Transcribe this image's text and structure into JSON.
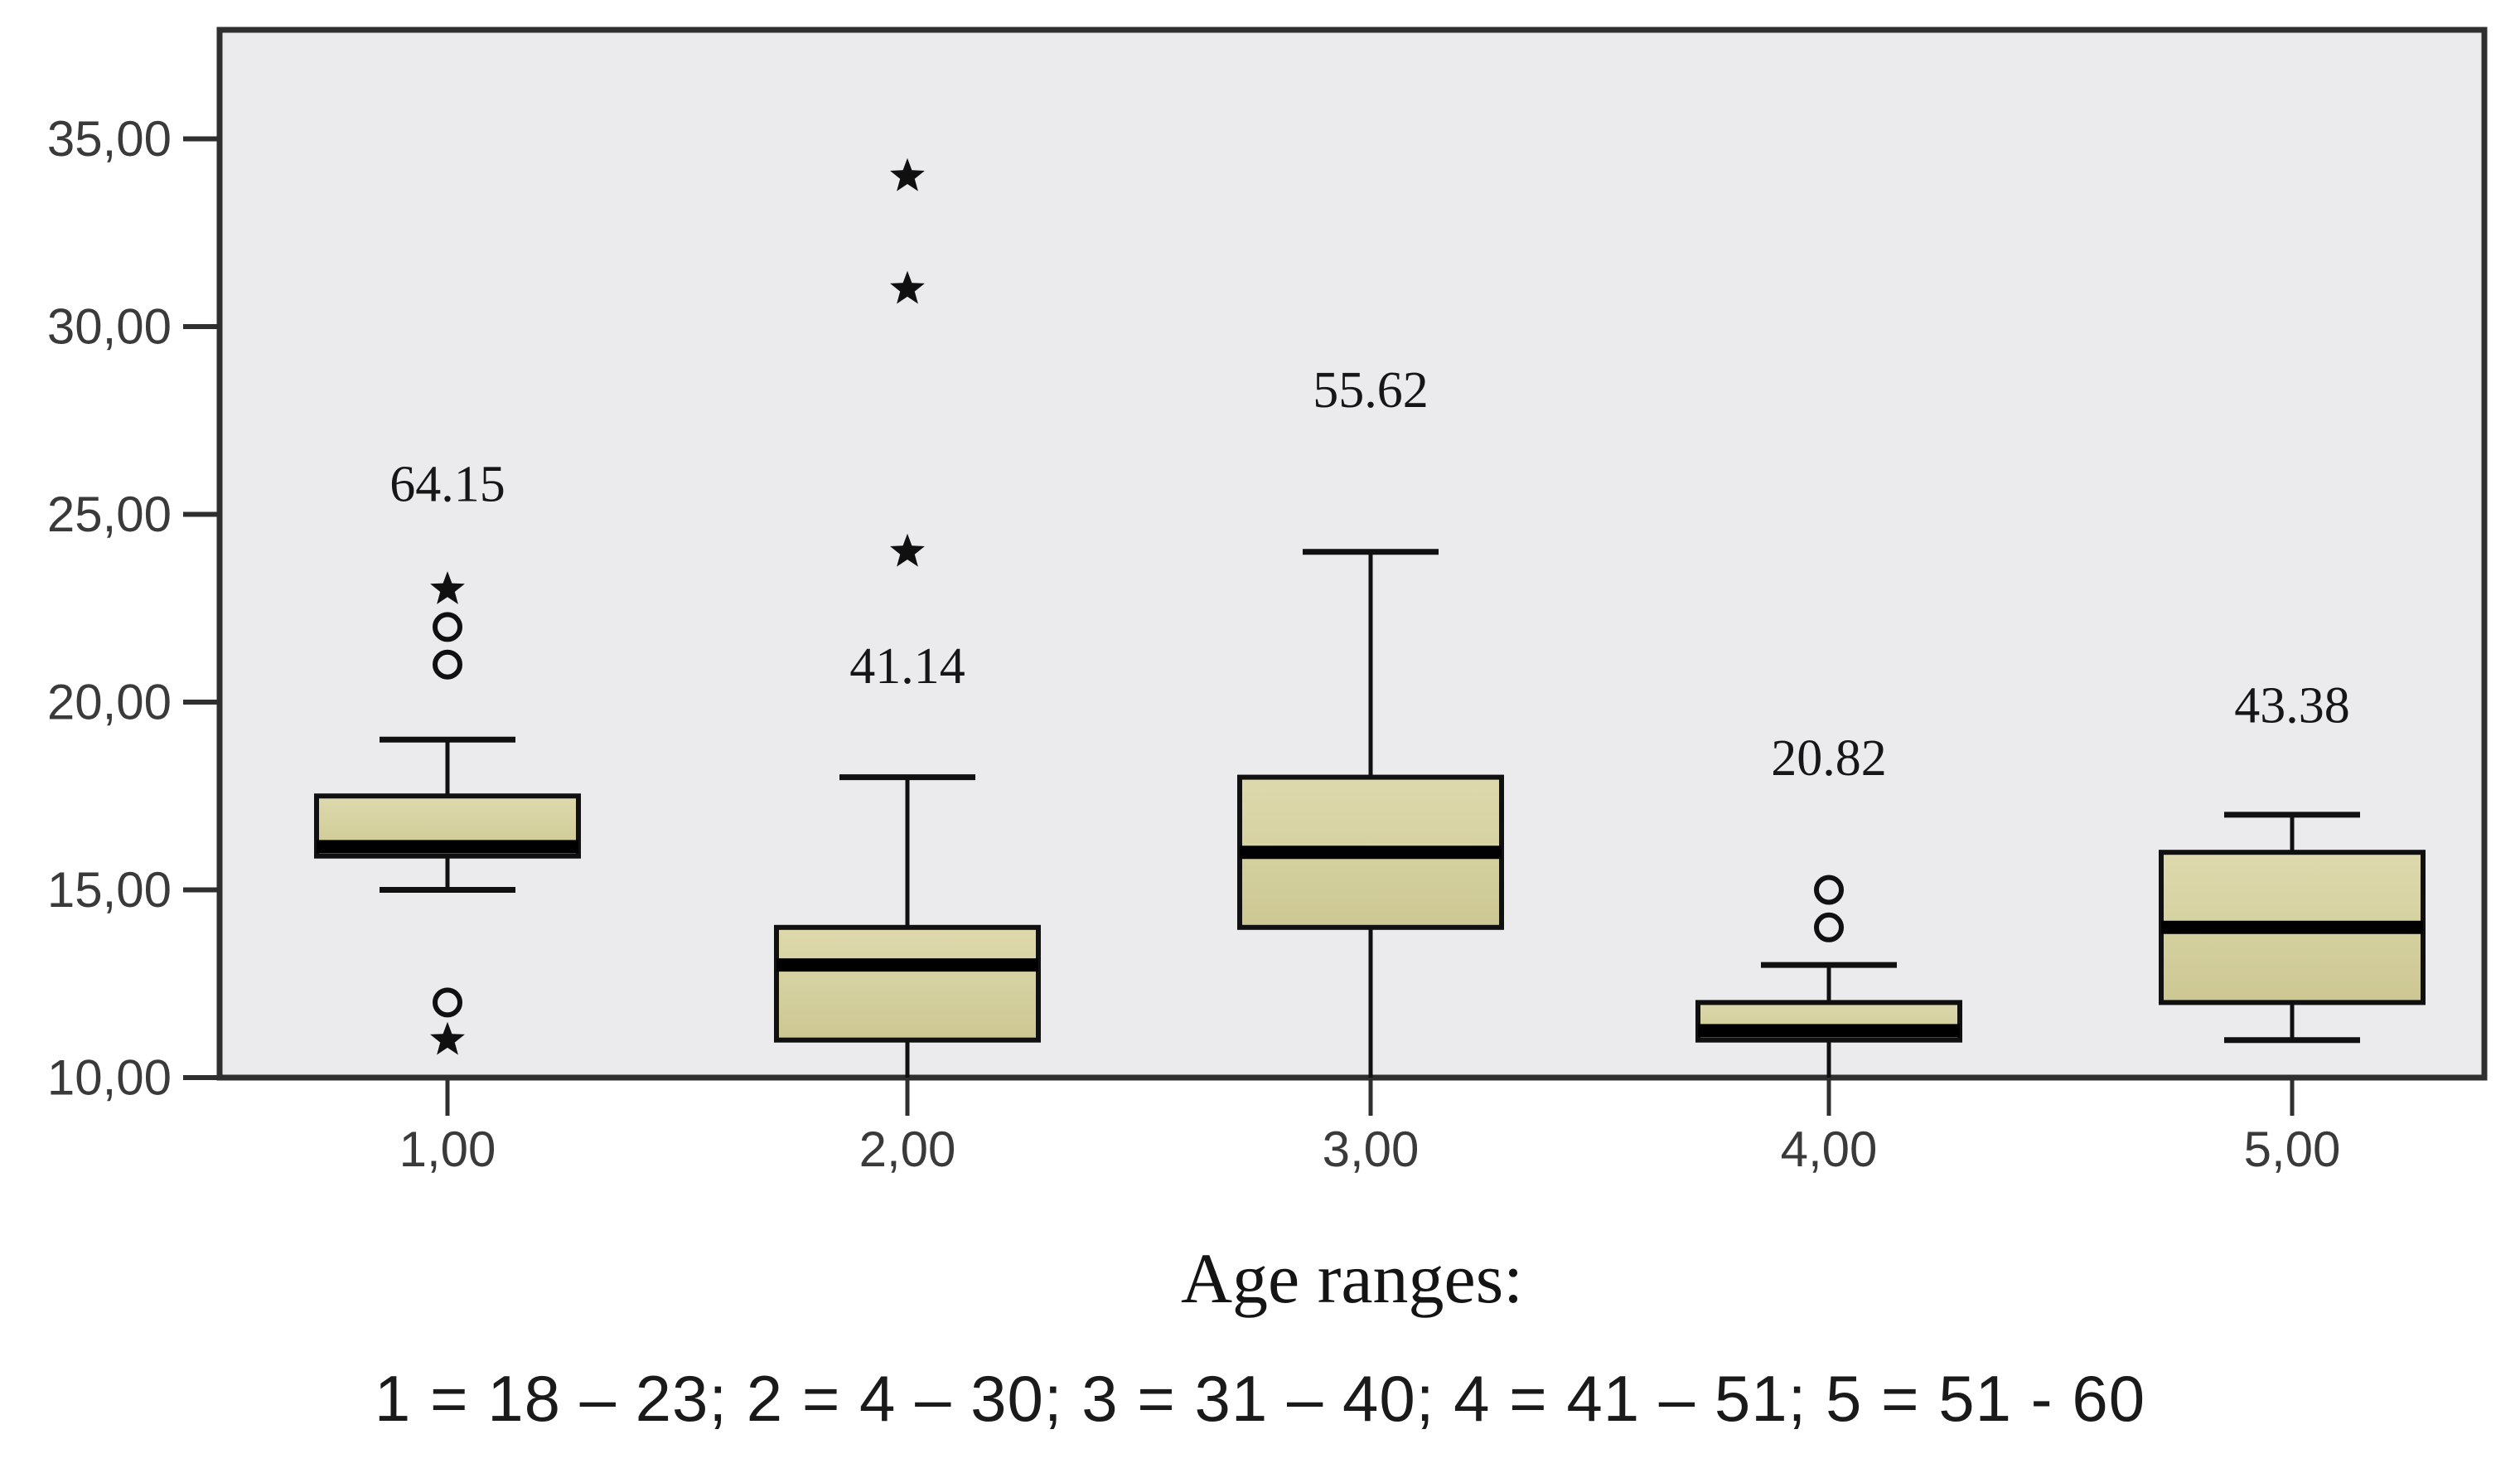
{
  "chart_data": {
    "type": "box",
    "title": "",
    "xlabel": "Age ranges:",
    "ylabel": "",
    "ylim": [
      10,
      37.9
    ],
    "grid": false,
    "y_axis": {
      "ticks": [
        {
          "value": 35,
          "label": "35,00"
        },
        {
          "value": 30,
          "label": "30,00"
        },
        {
          "value": 25,
          "label": "25,00"
        },
        {
          "value": 20,
          "label": "20,00"
        },
        {
          "value": 15,
          "label": "15,00"
        },
        {
          "value": 10,
          "label": "10,00"
        }
      ]
    },
    "x_axis": {
      "title": "Age ranges:",
      "categories": [
        "1,00",
        "2,00",
        "3,00",
        "4,00",
        "5,00"
      ]
    },
    "series": [
      {
        "category": "1,00",
        "whisker_low": 15,
        "low_cap": true,
        "q1": 15.9,
        "median": 16.15,
        "q3": 17.5,
        "whisker_high": 19,
        "high_cap": true,
        "outliers": [
          {
            "type": "star",
            "value": 23
          },
          {
            "type": "circle",
            "value": 22
          },
          {
            "type": "circle",
            "value": 21
          },
          {
            "type": "circle",
            "value": 12
          },
          {
            "type": "star",
            "value": 11
          }
        ],
        "annotation": {
          "text": "64.15",
          "value": 25.8
        }
      },
      {
        "category": "2,00",
        "whisker_low": 10,
        "low_cap": false,
        "q1": 11,
        "median": 13,
        "q3": 14,
        "whisker_high": 18,
        "high_cap": true,
        "outliers": [
          {
            "type": "star",
            "value": 34
          },
          {
            "type": "star",
            "value": 31
          },
          {
            "type": "star",
            "value": 24
          }
        ],
        "annotation": {
          "text": "41.14",
          "value": 20.95
        }
      },
      {
        "category": "3,00",
        "whisker_low": 10,
        "low_cap": false,
        "q1": 14,
        "median": 16,
        "q3": 18,
        "whisker_high": 24,
        "high_cap": true,
        "outliers": [],
        "annotation": {
          "text": "55.62",
          "value": 28.3
        }
      },
      {
        "category": "4,00",
        "whisker_low": 10,
        "low_cap": false,
        "q1": 11,
        "median": 11.25,
        "q3": 12,
        "whisker_high": 13,
        "high_cap": true,
        "outliers": [
          {
            "type": "circle",
            "value": 15
          },
          {
            "type": "circle",
            "value": 14
          }
        ],
        "annotation": {
          "text": "20.82",
          "value": 18.5
        }
      },
      {
        "category": "5,00",
        "whisker_low": 11,
        "low_cap": true,
        "q1": 12,
        "median": 14,
        "q3": 16,
        "whisker_high": 17,
        "high_cap": true,
        "outliers": [],
        "annotation": {
          "text": "43.38",
          "value": 19.9
        }
      }
    ],
    "footnote": "1 = 18 – 23; 2 = 4 – 30; 3 = 31 – 40; 4 = 41 – 51; 5 = 51 - 60",
    "colors": {
      "panel_fill": "#ebebee",
      "frame_stroke": "#2f2f2f",
      "box_fill": "#d5d1a0",
      "box_fill_light": "#ded9ad",
      "box_fill_dark": "#ccc792",
      "box_stroke": "#101010",
      "median_stroke": "#000000",
      "tick_label_color": "#3a3a3a",
      "annotation_color": "#161616"
    }
  }
}
